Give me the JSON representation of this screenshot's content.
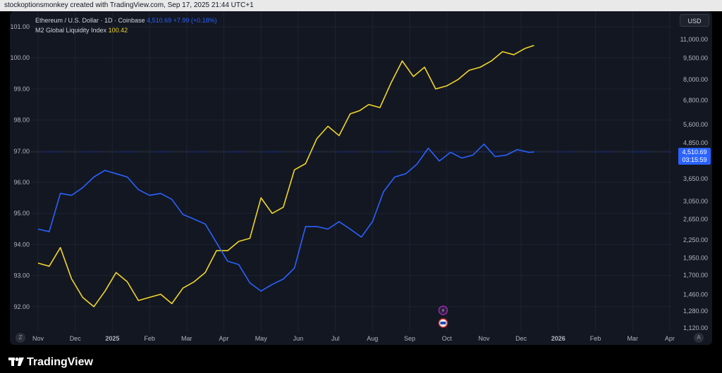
{
  "header": {
    "attribution": "stockoptionsmonkey created with TradingView.com, Sep 17, 2025 21:44 UTC+1"
  },
  "legend": {
    "eth_name": "Ethereum / U.S. Dollar · 1D · Coinbase",
    "eth_value": "4,510.69",
    "eth_change": "+7.99 (+0.18%)",
    "m2_name": "M2 Global Liquidity Index",
    "m2_value": "100.42"
  },
  "currency": "USD",
  "price_label": {
    "value": "4,510.69",
    "countdown": "03:15:59"
  },
  "buttons": {
    "z": "Z",
    "a": "A"
  },
  "footer": {
    "brand": "TradingView"
  },
  "colors": {
    "background": "#131722",
    "eth_line": "#2962ff",
    "m2_line": "#f2d626",
    "price_label_bg": "#2962ff"
  },
  "icons": [
    "lightning-event-icon",
    "us-flag-event-icon",
    "tradingview-logo-icon"
  ],
  "chart_data": {
    "type": "line",
    "grid": true,
    "x_ticks": [
      "Nov",
      "Dec",
      "2025",
      "Feb",
      "Mar",
      "Apr",
      "May",
      "Jun",
      "Jul",
      "Aug",
      "Sep",
      "Oct",
      "Nov",
      "Dec",
      "2026",
      "Feb",
      "Mar",
      "Apr"
    ],
    "left_axis": {
      "ticks": [
        "101.00",
        "100.00",
        "99.00",
        "98.00",
        "97.00",
        "96.00",
        "95.00",
        "94.00",
        "93.00",
        "92.00"
      ],
      "range": [
        91.6,
        101.2
      ]
    },
    "right_axis": {
      "scale": "log",
      "ticks": [
        "11,000.00",
        "9,500.00",
        "8,000.00",
        "6,800.00",
        "5,600.00",
        "4,850.00",
        "3,650.00",
        "3,050.00",
        "2,650.00",
        "2,250.00",
        "1,950.00",
        "1,700.00",
        "1,460.00",
        "1,280.00",
        "1,120.00"
      ],
      "range": [
        1120,
        11000
      ]
    },
    "series": [
      {
        "name": "M2 Global Liquidity Index",
        "axis": "left",
        "x": [
          0.0,
          0.3,
          0.6,
          0.9,
          1.2,
          1.5,
          1.8,
          2.1,
          2.4,
          2.7,
          3.0,
          3.3,
          3.6,
          3.9,
          4.2,
          4.5,
          4.8,
          5.1,
          5.4,
          5.7,
          6.0,
          6.3,
          6.6,
          6.9,
          7.2,
          7.5,
          7.8,
          8.1,
          8.4,
          8.65,
          8.9,
          9.2,
          9.5,
          9.8,
          10.1,
          10.4,
          10.7,
          11.0,
          11.3,
          11.6,
          11.9,
          12.2,
          12.5,
          12.8,
          13.1,
          13.35
        ],
        "values": [
          93.4,
          93.3,
          93.9,
          92.9,
          92.3,
          92.0,
          92.5,
          93.1,
          92.8,
          92.2,
          92.3,
          92.4,
          92.1,
          92.6,
          92.8,
          93.1,
          93.8,
          93.8,
          94.1,
          94.2,
          95.5,
          95.0,
          95.2,
          96.4,
          96.6,
          97.4,
          97.8,
          97.5,
          98.2,
          98.3,
          98.5,
          98.4,
          99.2,
          99.9,
          99.4,
          99.7,
          99.0,
          99.1,
          99.3,
          99.6,
          99.7,
          99.9,
          100.2,
          100.1,
          100.3,
          100.4
        ]
      },
      {
        "name": "Ethereum / U.S. Dollar · 1D · Coinbase",
        "axis": "right",
        "x": [
          0.0,
          0.3,
          0.6,
          0.9,
          1.2,
          1.5,
          1.8,
          2.1,
          2.4,
          2.7,
          3.0,
          3.3,
          3.6,
          3.9,
          4.2,
          4.5,
          4.8,
          5.1,
          5.4,
          5.7,
          6.0,
          6.3,
          6.6,
          6.9,
          7.2,
          7.5,
          7.8,
          8.1,
          8.4,
          8.7,
          9.0,
          9.3,
          9.6,
          9.9,
          10.2,
          10.5,
          10.8,
          11.1,
          11.4,
          11.7,
          12.0,
          12.3,
          12.6,
          12.9,
          13.2,
          13.35
        ],
        "values": [
          2450,
          2400,
          3250,
          3200,
          3400,
          3700,
          3900,
          3800,
          3700,
          3350,
          3200,
          3250,
          3100,
          2750,
          2650,
          2550,
          2200,
          1900,
          1850,
          1600,
          1500,
          1580,
          1650,
          1800,
          2500,
          2500,
          2450,
          2600,
          2450,
          2300,
          2600,
          3300,
          3700,
          3800,
          4100,
          4650,
          4200,
          4500,
          4300,
          4400,
          4800,
          4350,
          4400,
          4600,
          4500,
          4510
        ]
      }
    ]
  }
}
